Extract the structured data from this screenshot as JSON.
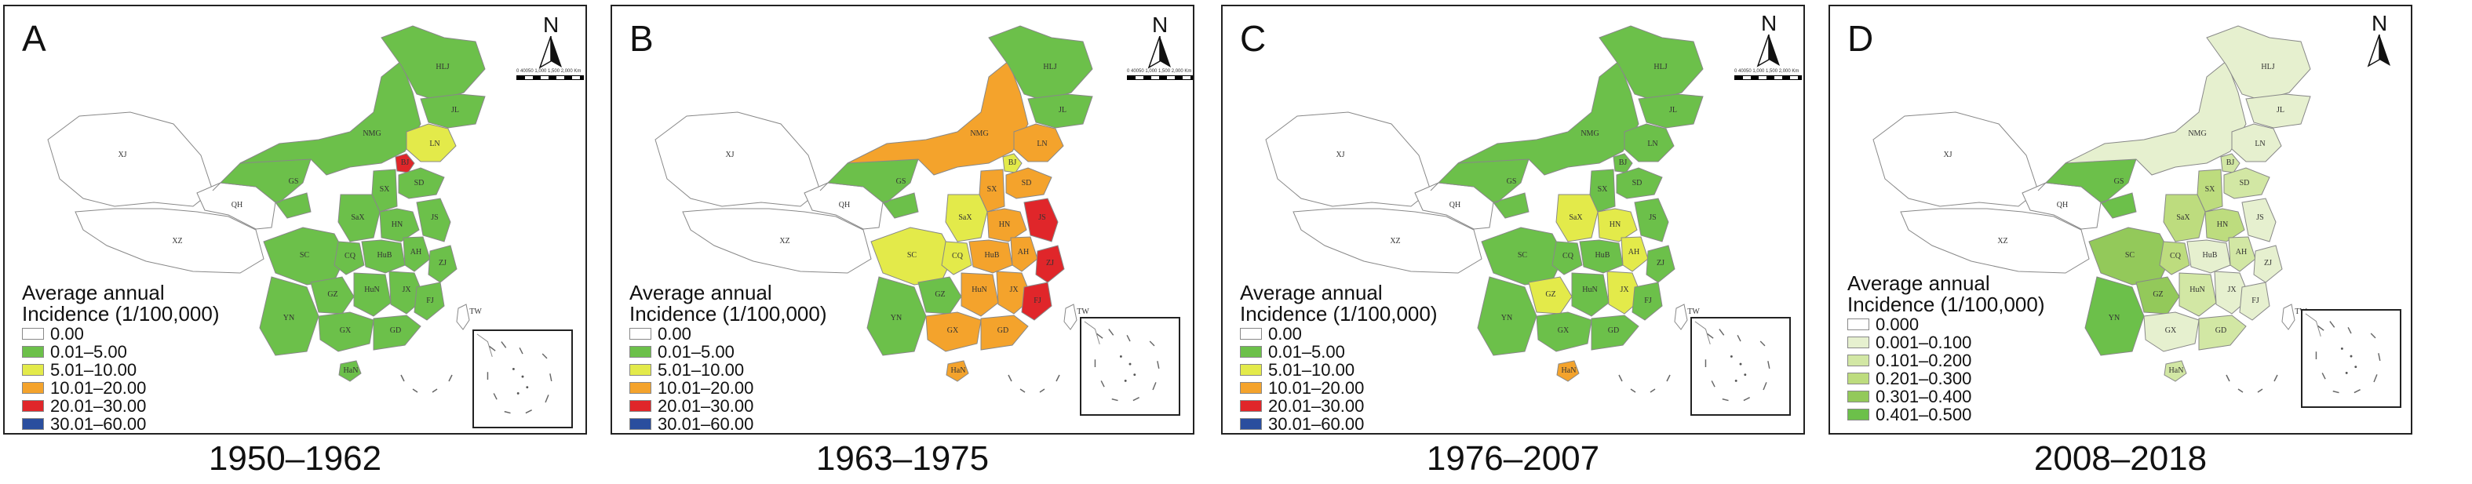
{
  "north_label": "N",
  "scale_text": "0 40050 1,000 1,500 2,000 Km",
  "legend_colors": {
    "white": "#ffffff",
    "green": "#6cc04a",
    "yellow": "#e3ea4a",
    "orange": "#f4a32c",
    "red": "#e0262a",
    "blue": "#2a4e9e",
    "pale1": "#e6f0cf",
    "pale2": "#d2e7a4",
    "pale3": "#bddc7e",
    "pale4": "#93c95a",
    "pale5": "#6cc04a"
  },
  "panels": [
    {
      "letter": "A",
      "caption": "1950–1962",
      "legend_title_1": "Average annual",
      "legend_title_2": "Incidence (1/100,000)",
      "legend": [
        {
          "label": "0.00",
          "color": "#ffffff"
        },
        {
          "label": "0.01–5.00",
          "color": "#6cc04a"
        },
        {
          "label": "5.01–10.00",
          "color": "#e3ea4a"
        },
        {
          "label": "10.01–20.00",
          "color": "#f4a32c"
        },
        {
          "label": "20.01–30.00",
          "color": "#e0262a"
        },
        {
          "label": "30.01–60.00",
          "color": "#2a4e9e"
        }
      ],
      "region_colors": {
        "XJ": "#ffffff",
        "XZ": "#ffffff",
        "QH": "#ffffff",
        "GS": "#6cc04a",
        "NMG": "#6cc04a",
        "HLJ": "#6cc04a",
        "JL": "#6cc04a",
        "LN": "#e3ea4a",
        "BJ": "#e0262a",
        "SX": "#6cc04a",
        "SD": "#6cc04a",
        "SaX": "#6cc04a",
        "HN": "#6cc04a",
        "JS": "#6cc04a",
        "SC": "#6cc04a",
        "CQ": "#6cc04a",
        "HuB": "#6cc04a",
        "AH": "#6cc04a",
        "ZJ": "#6cc04a",
        "YN": "#6cc04a",
        "GZ": "#6cc04a",
        "HuN": "#6cc04a",
        "JX": "#6cc04a",
        "FJ": "#6cc04a",
        "GX": "#6cc04a",
        "GD": "#6cc04a",
        "HaN": "#6cc04a",
        "TW": "#ffffff"
      }
    },
    {
      "letter": "B",
      "caption": "1963–1975",
      "legend_title_1": "Average annual",
      "legend_title_2": "Incidence (1/100,000)",
      "legend": [
        {
          "label": "0.00",
          "color": "#ffffff"
        },
        {
          "label": "0.01–5.00",
          "color": "#6cc04a"
        },
        {
          "label": "5.01–10.00",
          "color": "#e3ea4a"
        },
        {
          "label": "10.01–20.00",
          "color": "#f4a32c"
        },
        {
          "label": "20.01–30.00",
          "color": "#e0262a"
        },
        {
          "label": "30.01–60.00",
          "color": "#2a4e9e"
        }
      ],
      "region_colors": {
        "XJ": "#ffffff",
        "XZ": "#ffffff",
        "QH": "#ffffff",
        "GS": "#6cc04a",
        "NMG": "#f4a32c",
        "HLJ": "#6cc04a",
        "JL": "#6cc04a",
        "LN": "#f4a32c",
        "BJ": "#e3ea4a",
        "SX": "#f4a32c",
        "SD": "#f4a32c",
        "SaX": "#e3ea4a",
        "HN": "#f4a32c",
        "JS": "#e0262a",
        "SC": "#e3ea4a",
        "CQ": "#e3ea4a",
        "HuB": "#f4a32c",
        "AH": "#f4a32c",
        "ZJ": "#e0262a",
        "YN": "#6cc04a",
        "GZ": "#6cc04a",
        "HuN": "#f4a32c",
        "JX": "#f4a32c",
        "FJ": "#e0262a",
        "GX": "#f4a32c",
        "GD": "#f4a32c",
        "HaN": "#f4a32c",
        "TW": "#ffffff"
      }
    },
    {
      "letter": "C",
      "caption": "1976–2007",
      "legend_title_1": "Average annual",
      "legend_title_2": "Incidence (1/100,000)",
      "legend": [
        {
          "label": "0.00",
          "color": "#ffffff"
        },
        {
          "label": "0.01–5.00",
          "color": "#6cc04a"
        },
        {
          "label": "5.01–10.00",
          "color": "#e3ea4a"
        },
        {
          "label": "10.01–20.00",
          "color": "#f4a32c"
        },
        {
          "label": "20.01–30.00",
          "color": "#e0262a"
        },
        {
          "label": "30.01–60.00",
          "color": "#2a4e9e"
        }
      ],
      "region_colors": {
        "XJ": "#ffffff",
        "XZ": "#ffffff",
        "QH": "#ffffff",
        "GS": "#6cc04a",
        "NMG": "#6cc04a",
        "HLJ": "#6cc04a",
        "JL": "#6cc04a",
        "LN": "#6cc04a",
        "BJ": "#6cc04a",
        "SX": "#6cc04a",
        "SD": "#6cc04a",
        "SaX": "#e3ea4a",
        "HN": "#e3ea4a",
        "JS": "#6cc04a",
        "SC": "#6cc04a",
        "CQ": "#6cc04a",
        "HuB": "#6cc04a",
        "AH": "#e3ea4a",
        "ZJ": "#6cc04a",
        "YN": "#6cc04a",
        "GZ": "#e3ea4a",
        "HuN": "#6cc04a",
        "JX": "#e3ea4a",
        "FJ": "#6cc04a",
        "GX": "#6cc04a",
        "GD": "#6cc04a",
        "HaN": "#f4a32c",
        "TW": "#ffffff"
      }
    },
    {
      "letter": "D",
      "caption": "2008–2018",
      "legend_title_1": "Average annual",
      "legend_title_2": "Incidence (1/100,000)",
      "legend": [
        {
          "label": "0.000",
          "color": "#ffffff"
        },
        {
          "label": "0.001–0.100",
          "color": "#e6f0cf"
        },
        {
          "label": "0.101–0.200",
          "color": "#d2e7a4"
        },
        {
          "label": "0.201–0.300",
          "color": "#bddc7e"
        },
        {
          "label": "0.301–0.400",
          "color": "#93c95a"
        },
        {
          "label": "0.401–0.500",
          "color": "#6cc04a"
        }
      ],
      "region_colors": {
        "XJ": "#ffffff",
        "XZ": "#ffffff",
        "QH": "#ffffff",
        "GS": "#6cc04a",
        "NMG": "#e6f0cf",
        "HLJ": "#e6f0cf",
        "JL": "#e6f0cf",
        "LN": "#e6f0cf",
        "BJ": "#d2e7a4",
        "SX": "#bddc7e",
        "SD": "#d2e7a4",
        "SaX": "#bddc7e",
        "HN": "#bddc7e",
        "JS": "#e6f0cf",
        "SC": "#93c95a",
        "CQ": "#bddc7e",
        "HuB": "#e6f0cf",
        "AH": "#d2e7a4",
        "ZJ": "#e6f0cf",
        "YN": "#6cc04a",
        "GZ": "#93c95a",
        "HuN": "#d2e7a4",
        "JX": "#e6f0cf",
        "FJ": "#e6f0cf",
        "GX": "#e6f0cf",
        "GD": "#d2e7a4",
        "HaN": "#d2e7a4",
        "TW": "#ffffff"
      }
    }
  ],
  "region_labels": {
    "XJ": "XJ",
    "XZ": "XZ",
    "QH": "QH",
    "GS": "GS",
    "NMG": "NMG",
    "HLJ": "HLJ",
    "JL": "JL",
    "LN": "LN",
    "BJ": "BJ",
    "SX": "SX",
    "SD": "SD",
    "SaX": "SaX",
    "HN": "HN",
    "JS": "JS",
    "SC": "SC",
    "CQ": "CQ",
    "HuB": "HuB",
    "AH": "AH",
    "ZJ": "ZJ",
    "YN": "YN",
    "GZ": "GZ",
    "HuN": "HuN",
    "JX": "JX",
    "FJ": "FJ",
    "GX": "GX",
    "GD": "GD",
    "HaN": "HaN",
    "TW": "TW"
  }
}
